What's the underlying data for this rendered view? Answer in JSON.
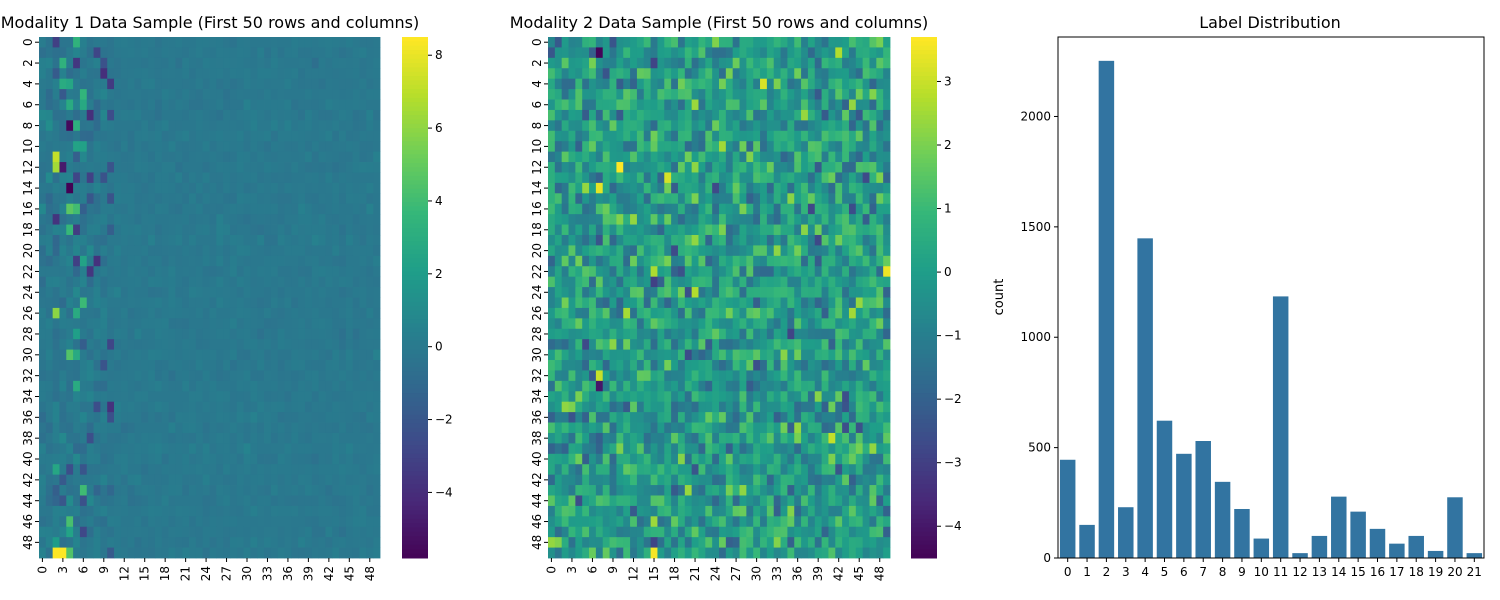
{
  "chart_data": [
    {
      "type": "heatmap",
      "title": "Modality 1 Data Sample (First 50 rows and columns)",
      "rows": 50,
      "cols": 50,
      "row_tick_labels": [
        "0",
        "2",
        "4",
        "6",
        "8",
        "10",
        "12",
        "14",
        "16",
        "18",
        "20",
        "22",
        "24",
        "26",
        "28",
        "30",
        "32",
        "34",
        "36",
        "38",
        "40",
        "42",
        "44",
        "46",
        "48"
      ],
      "col_tick_labels": [
        "0",
        "3",
        "6",
        "9",
        "12",
        "15",
        "18",
        "21",
        "24",
        "27",
        "30",
        "33",
        "36",
        "39",
        "42",
        "45",
        "48"
      ],
      "colormap": "viridis",
      "vmin": -5.8,
      "vmax": 8.5,
      "colorbar_ticks": [
        "8",
        "6",
        "4",
        "2",
        "0",
        "−2",
        "−4"
      ],
      "colorbar_tick_values": [
        8,
        6,
        4,
        2,
        0,
        -2,
        -4
      ],
      "values_note": "per-cell values not individually legible; mostly near 0 with high outliers in columns 2-6",
      "highlights": [
        {
          "row": 49,
          "col": 2,
          "value": 8.5
        },
        {
          "row": 49,
          "col": 3,
          "value": 8.5
        },
        {
          "row": 11,
          "col": 2,
          "value": 7.2
        },
        {
          "row": 12,
          "col": 2,
          "value": 6.5
        },
        {
          "row": 26,
          "col": 2,
          "value": 6.0
        },
        {
          "row": 8,
          "col": 4,
          "value": -5.5
        },
        {
          "row": 14,
          "col": 4,
          "value": -5.8
        },
        {
          "row": 12,
          "col": 3,
          "value": -4.8
        }
      ]
    },
    {
      "type": "heatmap",
      "title": "Modality 2 Data Sample (First 50 rows and columns)",
      "rows": 50,
      "cols": 50,
      "row_tick_labels": [
        "0",
        "2",
        "4",
        "6",
        "8",
        "10",
        "12",
        "14",
        "16",
        "18",
        "20",
        "22",
        "24",
        "26",
        "28",
        "30",
        "32",
        "34",
        "36",
        "38",
        "40",
        "42",
        "44",
        "46",
        "48"
      ],
      "col_tick_labels": [
        "0",
        "3",
        "6",
        "9",
        "12",
        "15",
        "18",
        "21",
        "24",
        "27",
        "30",
        "33",
        "36",
        "39",
        "42",
        "45",
        "48"
      ],
      "colormap": "viridis",
      "vmin": -4.5,
      "vmax": 3.7,
      "colorbar_ticks": [
        "3",
        "2",
        "1",
        "0",
        "−1",
        "−2",
        "−3",
        "−4"
      ],
      "colorbar_tick_values": [
        3,
        2,
        1,
        0,
        -1,
        -2,
        -3,
        -4
      ],
      "values_note": "per-cell values not individually legible; roughly standard-normal noise",
      "highlights": [
        {
          "row": 49,
          "col": 15,
          "value": 3.6
        },
        {
          "row": 22,
          "col": 49,
          "value": 3.5
        },
        {
          "row": 13,
          "col": 17,
          "value": 3.2
        },
        {
          "row": 1,
          "col": 7,
          "value": -4.4
        },
        {
          "row": 33,
          "col": 7,
          "value": -4.0
        }
      ]
    },
    {
      "type": "bar",
      "title": "Label Distribution",
      "xlabel": "",
      "ylabel": "count",
      "categories": [
        "0",
        "1",
        "2",
        "3",
        "4",
        "5",
        "6",
        "7",
        "8",
        "9",
        "10",
        "11",
        "12",
        "13",
        "14",
        "15",
        "16",
        "17",
        "18",
        "19",
        "20",
        "21"
      ],
      "values": [
        445,
        150,
        2252,
        230,
        1448,
        622,
        472,
        530,
        345,
        222,
        88,
        1185,
        22,
        100,
        278,
        210,
        132,
        65,
        100,
        32,
        275,
        22
      ],
      "ylim": [
        0,
        2360
      ],
      "yticks": [
        0,
        500,
        1000,
        1500,
        2000
      ],
      "color": "#3274a1"
    }
  ]
}
